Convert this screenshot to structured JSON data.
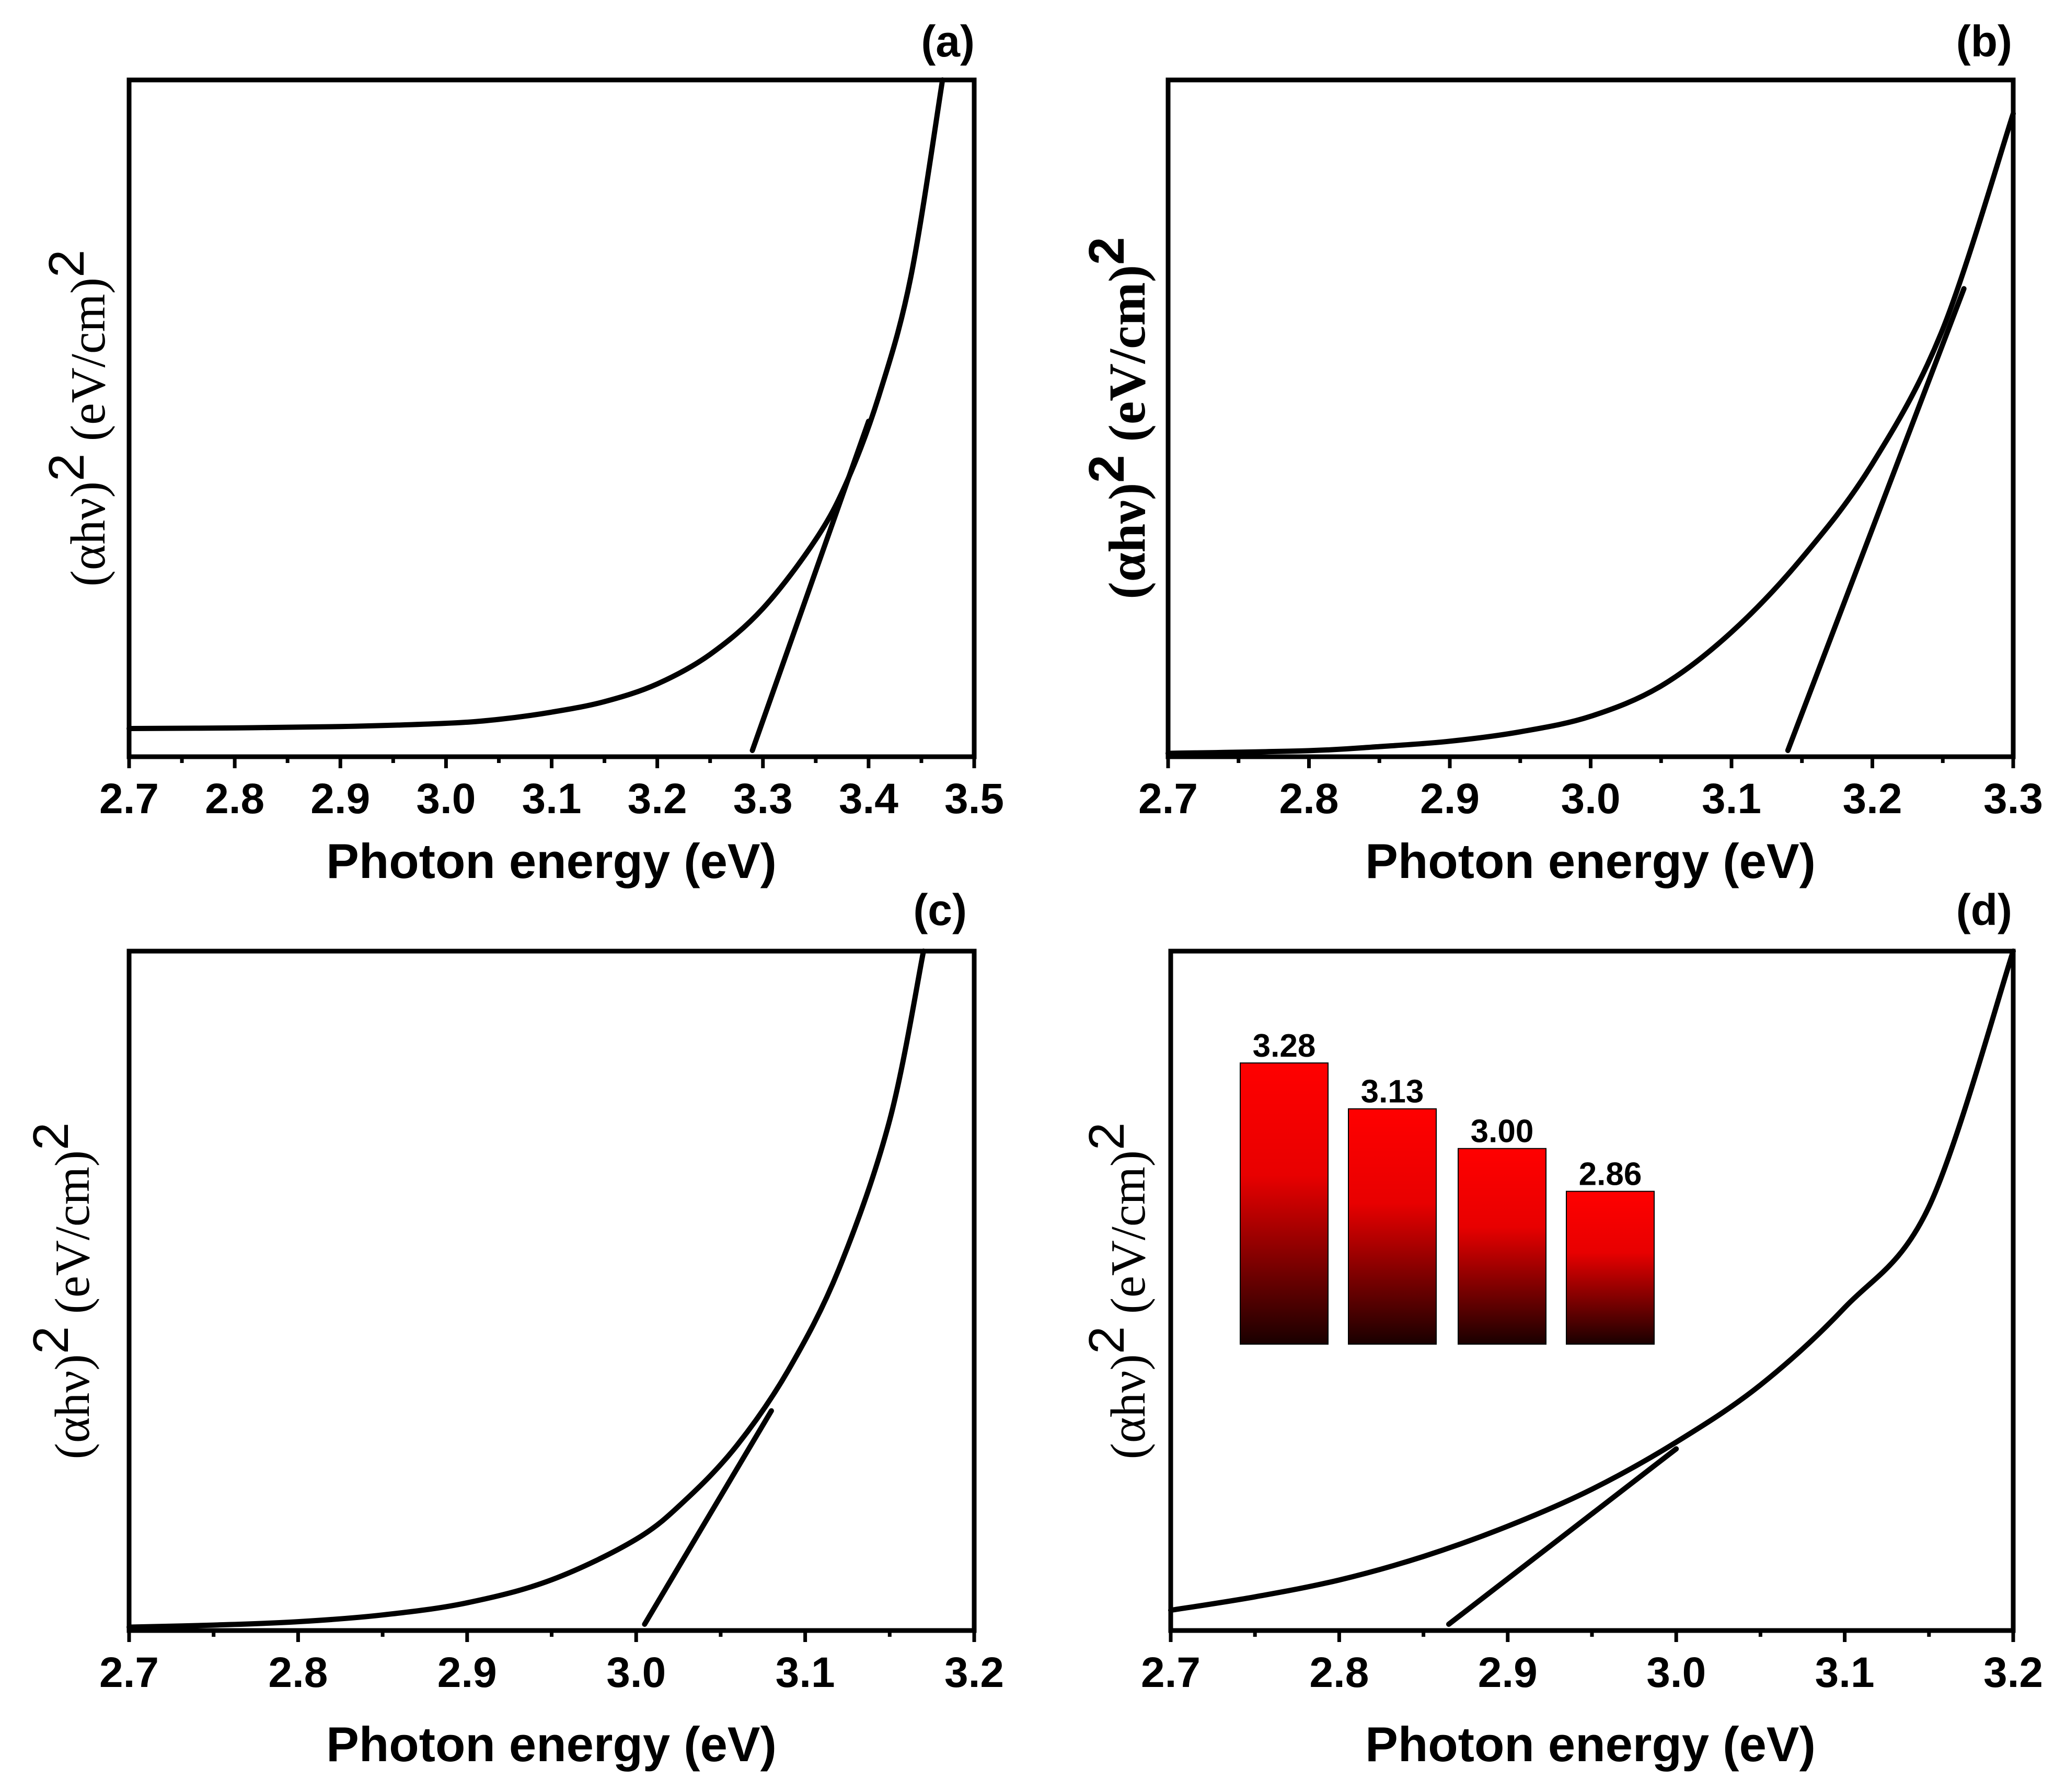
{
  "chart_data": [
    {
      "panel": "(a)",
      "type": "line",
      "xlabel": "Photon energy (eV)",
      "ylabel": "(αhν)2 (eV/cm)2",
      "xlim": [
        2.7,
        3.5
      ],
      "ylim": [
        0,
        1
      ],
      "xticks": [
        "2.7",
        "2.8",
        "2.9",
        "3.0",
        "3.1",
        "3.2",
        "3.3",
        "3.4",
        "3.5"
      ],
      "series": [
        {
          "role": "curve",
          "x": [
            2.7,
            2.8,
            2.9,
            3.0,
            3.05,
            3.1,
            3.15,
            3.2,
            3.25,
            3.3,
            3.35,
            3.38,
            3.41,
            3.44,
            3.47
          ],
          "y": [
            0.012,
            0.013,
            0.015,
            0.02,
            0.026,
            0.037,
            0.053,
            0.08,
            0.125,
            0.195,
            0.3,
            0.39,
            0.52,
            0.7,
            1.0
          ]
        },
        {
          "role": "fit",
          "x": [
            3.29,
            3.4
          ],
          "y": [
            0.0,
            0.48
          ]
        }
      ],
      "intercept": 3.28
    },
    {
      "panel": "(b)",
      "type": "line",
      "xlabel": "Photon energy (eV)",
      "ylabel": "(αhν)2 (eV/cm)2",
      "xlim": [
        2.7,
        3.3
      ],
      "ylim": [
        0,
        1
      ],
      "xticks": [
        "2.7",
        "2.8",
        "2.9",
        "3.0",
        "3.1",
        "3.2",
        "3.3"
      ],
      "series": [
        {
          "role": "curve",
          "x": [
            2.7,
            2.8,
            2.85,
            2.9,
            2.95,
            3.0,
            3.05,
            3.1,
            3.15,
            3.2,
            3.25,
            3.3
          ],
          "y": [
            0.0,
            0.004,
            0.01,
            0.018,
            0.032,
            0.055,
            0.1,
            0.18,
            0.29,
            0.43,
            0.63,
            0.95
          ]
        },
        {
          "role": "fit",
          "x": [
            3.14,
            3.265
          ],
          "y": [
            0.0,
            0.69
          ]
        }
      ],
      "intercept": 3.13
    },
    {
      "panel": "(c)",
      "type": "line",
      "xlabel": "Photon energy (eV)",
      "ylabel": "(αhν)2 (eV/cm)2",
      "xlim": [
        2.7,
        3.2
      ],
      "ylim": [
        0,
        1
      ],
      "xticks": [
        "2.7",
        "2.8",
        "2.9",
        "3.0",
        "3.1",
        "3.2"
      ],
      "series": [
        {
          "role": "curve",
          "x": [
            2.7,
            2.75,
            2.8,
            2.85,
            2.9,
            2.95,
            3.0,
            3.03,
            3.06,
            3.09,
            3.12,
            3.15,
            3.17
          ],
          "y": [
            0.0,
            0.003,
            0.008,
            0.018,
            0.036,
            0.07,
            0.13,
            0.19,
            0.27,
            0.38,
            0.53,
            0.75,
            1.0
          ]
        },
        {
          "role": "fit",
          "x": [
            3.005,
            3.08
          ],
          "y": [
            0.0,
            0.32
          ]
        }
      ],
      "intercept": 3.0
    },
    {
      "panel": "(d)",
      "type": "line",
      "xlabel": "Photon energy (eV)",
      "ylabel": "(αhν)2 (eV/cm)2",
      "xlim": [
        2.7,
        3.2
      ],
      "ylim": [
        0,
        1
      ],
      "xticks": [
        "2.7",
        "2.8",
        "2.9",
        "3.0",
        "3.1",
        "3.2"
      ],
      "series": [
        {
          "role": "curve",
          "x": [
            2.7,
            2.75,
            2.8,
            2.85,
            2.9,
            2.95,
            3.0,
            3.05,
            3.1,
            3.15,
            3.2
          ],
          "y": [
            0.02,
            0.04,
            0.065,
            0.1,
            0.145,
            0.2,
            0.27,
            0.355,
            0.47,
            0.62,
            1.0
          ]
        },
        {
          "role": "fit",
          "x": [
            2.865,
            3.0
          ],
          "y": [
            0.0,
            0.26
          ]
        }
      ],
      "intercept": 2.86
    }
  ],
  "inset": {
    "type": "bar",
    "values": [
      3.28,
      3.13,
      3.0,
      2.86
    ],
    "labels": [
      "3.28",
      "3.13",
      "3.00",
      "2.86"
    ],
    "bar_color_top": "#ff0000",
    "bar_color_bottom": "#1a0000"
  }
}
